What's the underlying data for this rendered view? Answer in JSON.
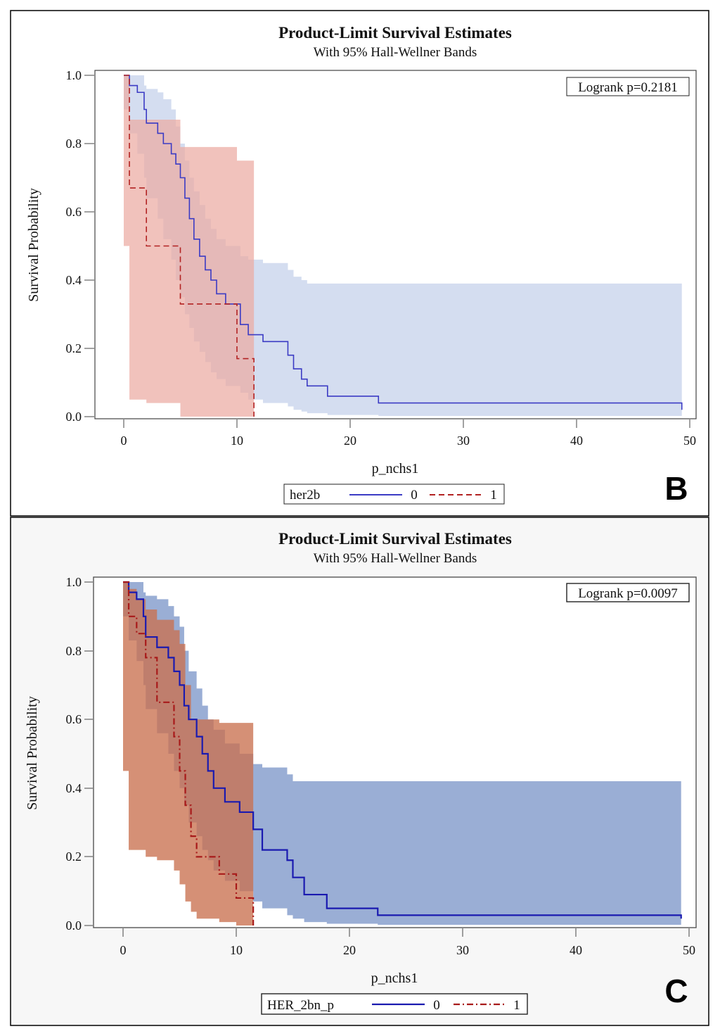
{
  "chart_data": [
    {
      "type": "line",
      "panel": "B",
      "title": "Product-Limit Survival Estimates",
      "subtitle": "With 95% Hall-Wellner Bands",
      "xlabel": "p_nchs1",
      "ylabel": "Survival Probability",
      "xlim": [
        0,
        50
      ],
      "ylim": [
        0.0,
        1.0
      ],
      "xticks": [
        "0",
        "10",
        "20",
        "30",
        "40",
        "50"
      ],
      "yticks": [
        "0.0",
        "0.2",
        "0.4",
        "0.6",
        "0.8",
        "1.0"
      ],
      "annotation": "Logrank p=0.2181",
      "legend": {
        "title": "her2b",
        "entries": [
          "0",
          "1"
        ]
      },
      "band_style": "light",
      "series": [
        {
          "name": "0",
          "color": "#3b3bc4",
          "band_color": "#c3d0ea",
          "dash": "",
          "x": [
            0,
            0.5,
            1.2,
            1.8,
            2.0,
            3.0,
            3.5,
            4.2,
            4.6,
            5.0,
            5.4,
            5.8,
            6.2,
            6.7,
            7.2,
            7.7,
            8.2,
            9.0,
            10.3,
            11.0,
            12.3,
            14.5,
            15.0,
            15.7,
            16.2,
            18.0,
            22.5,
            49.3
          ],
          "y": [
            1.0,
            0.97,
            0.95,
            0.9,
            0.86,
            0.83,
            0.8,
            0.77,
            0.74,
            0.7,
            0.64,
            0.58,
            0.52,
            0.47,
            0.43,
            0.4,
            0.36,
            0.33,
            0.27,
            0.24,
            0.22,
            0.18,
            0.14,
            0.11,
            0.09,
            0.06,
            0.04,
            0.02
          ],
          "lower": [
            0.9,
            0.83,
            0.77,
            0.7,
            0.64,
            0.58,
            0.52,
            0.46,
            0.4,
            0.35,
            0.3,
            0.26,
            0.22,
            0.19,
            0.16,
            0.13,
            0.11,
            0.09,
            0.07,
            0.05,
            0.04,
            0.03,
            0.02,
            0.015,
            0.01,
            0.005,
            0.002,
            0.0
          ],
          "upper": [
            1.0,
            1.0,
            1.0,
            0.97,
            0.96,
            0.95,
            0.93,
            0.9,
            0.85,
            0.8,
            0.75,
            0.7,
            0.66,
            0.62,
            0.58,
            0.55,
            0.52,
            0.5,
            0.47,
            0.46,
            0.45,
            0.43,
            0.41,
            0.4,
            0.39,
            0.39,
            0.39,
            0.39
          ]
        },
        {
          "name": "1",
          "color": "#b22222",
          "band_color": "#ecaaa2",
          "dash": "8,5",
          "x": [
            0,
            0.5,
            2.0,
            5.0,
            10.0,
            11.5
          ],
          "y": [
            1.0,
            0.67,
            0.5,
            0.33,
            0.17,
            0.0
          ],
          "lower": [
            0.5,
            0.05,
            0.04,
            0.0,
            0.0,
            0.0
          ],
          "upper": [
            1.0,
            0.87,
            0.87,
            0.79,
            0.75,
            0.75
          ]
        }
      ]
    },
    {
      "type": "line",
      "panel": "C",
      "title": "Product-Limit Survival Estimates",
      "subtitle": "With 95% Hall-Wellner Bands",
      "xlabel": "p_nchs1",
      "ylabel": "Survival Probability",
      "xlim": [
        0,
        50
      ],
      "ylim": [
        0.0,
        1.0
      ],
      "xticks": [
        "0",
        "10",
        "20",
        "30",
        "40",
        "50"
      ],
      "yticks": [
        "0.0",
        "0.2",
        "0.4",
        "0.6",
        "0.8",
        "1.0"
      ],
      "annotation": "Logrank p=0.0097",
      "legend": {
        "title": "HER_2bn_p",
        "entries": [
          "0",
          "1"
        ]
      },
      "band_style": "dark",
      "series": [
        {
          "name": "0",
          "color": "#1a1ab0",
          "band_color": "#7d97c9",
          "dash": "",
          "x": [
            0,
            0.5,
            1.2,
            1.8,
            2.0,
            3.0,
            4.0,
            4.5,
            5.0,
            5.4,
            5.8,
            6.5,
            7.0,
            7.5,
            8.0,
            9.0,
            10.3,
            11.5,
            12.3,
            14.5,
            15.0,
            16.0,
            18.0,
            22.5,
            49.3
          ],
          "y": [
            1.0,
            0.97,
            0.95,
            0.9,
            0.84,
            0.81,
            0.78,
            0.74,
            0.7,
            0.64,
            0.6,
            0.55,
            0.5,
            0.45,
            0.4,
            0.36,
            0.33,
            0.28,
            0.22,
            0.19,
            0.14,
            0.09,
            0.05,
            0.03,
            0.02
          ],
          "lower": [
            0.9,
            0.83,
            0.77,
            0.7,
            0.63,
            0.56,
            0.5,
            0.45,
            0.4,
            0.35,
            0.3,
            0.26,
            0.22,
            0.19,
            0.16,
            0.13,
            0.1,
            0.07,
            0.05,
            0.03,
            0.02,
            0.01,
            0.005,
            0.002,
            0.0
          ],
          "upper": [
            1.0,
            1.0,
            1.0,
            0.97,
            0.96,
            0.95,
            0.93,
            0.9,
            0.87,
            0.8,
            0.74,
            0.69,
            0.64,
            0.6,
            0.57,
            0.53,
            0.5,
            0.47,
            0.46,
            0.44,
            0.42,
            0.42,
            0.42,
            0.42,
            0.42
          ]
        },
        {
          "name": "1",
          "color": "#a81a1a",
          "band_color": "#c9714f",
          "dash": "9,4,2,4",
          "x": [
            0,
            0.5,
            1.2,
            2.0,
            3.0,
            4.5,
            5.0,
            5.5,
            6.0,
            6.5,
            8.5,
            10.0,
            11.5
          ],
          "y": [
            1.0,
            0.9,
            0.85,
            0.78,
            0.65,
            0.55,
            0.45,
            0.35,
            0.26,
            0.2,
            0.15,
            0.08,
            0.0
          ],
          "lower": [
            0.45,
            0.22,
            0.22,
            0.2,
            0.19,
            0.16,
            0.12,
            0.07,
            0.04,
            0.02,
            0.01,
            0.0,
            0.0
          ],
          "upper": [
            1.0,
            0.98,
            0.95,
            0.92,
            0.89,
            0.86,
            0.82,
            0.7,
            0.6,
            0.6,
            0.59,
            0.59,
            0.59
          ]
        }
      ]
    }
  ]
}
